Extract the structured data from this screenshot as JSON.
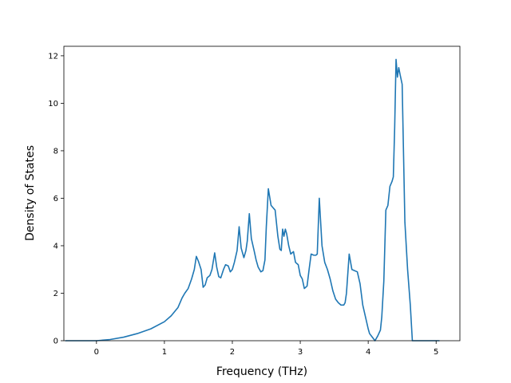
{
  "chart_data": {
    "type": "line",
    "title": "",
    "xlabel": "Frequency (THz)",
    "ylabel": "Density of States",
    "xlim": [
      -0.48,
      5.35
    ],
    "ylim": [
      0,
      12.4
    ],
    "x_ticks": [
      0,
      1,
      2,
      3,
      4,
      5
    ],
    "y_ticks": [
      0,
      2,
      4,
      6,
      8,
      10,
      12
    ],
    "grid": false,
    "legend": "none",
    "line_color": "#1f77b4",
    "series": [
      {
        "x": [
          -0.46,
          -0.2,
          0.0,
          0.2,
          0.4,
          0.6,
          0.8,
          1.0,
          1.1,
          1.2,
          1.26,
          1.3,
          1.35,
          1.4,
          1.44,
          1.47,
          1.5,
          1.54,
          1.57,
          1.6,
          1.63,
          1.67,
          1.7,
          1.74,
          1.77,
          1.8,
          1.83,
          1.87,
          1.9,
          1.94,
          1.97,
          2.0,
          2.03,
          2.07,
          2.1,
          2.13,
          2.17,
          2.2,
          2.22,
          2.25,
          2.28,
          2.32,
          2.35,
          2.38,
          2.42,
          2.45,
          2.48,
          2.5,
          2.53,
          2.57,
          2.6,
          2.63,
          2.67,
          2.7,
          2.72,
          2.74,
          2.76,
          2.78,
          2.8,
          2.83,
          2.86,
          2.9,
          2.93,
          2.97,
          3.0,
          3.03,
          3.06,
          3.1,
          3.13,
          3.16,
          3.2,
          3.23,
          3.25,
          3.28,
          3.32,
          3.36,
          3.4,
          3.44,
          3.48,
          3.52,
          3.56,
          3.6,
          3.64,
          3.66,
          3.68,
          3.72,
          3.76,
          3.8,
          3.84,
          3.88,
          3.92,
          3.96,
          4.0,
          4.02,
          4.06,
          4.1,
          4.14,
          4.18,
          4.2,
          4.23,
          4.26,
          4.29,
          4.32,
          4.35,
          4.37,
          4.39,
          4.41,
          4.43,
          4.45,
          4.47,
          4.5,
          4.54,
          4.58,
          4.62,
          4.65,
          4.8,
          5.05
        ],
        "y": [
          0.0,
          0.0,
          0.0,
          0.05,
          0.15,
          0.3,
          0.5,
          0.8,
          1.05,
          1.4,
          1.8,
          2.0,
          2.2,
          2.6,
          3.0,
          3.55,
          3.35,
          3.0,
          2.25,
          2.35,
          2.65,
          2.75,
          3.0,
          3.7,
          3.1,
          2.7,
          2.65,
          3.0,
          3.2,
          3.15,
          2.9,
          3.0,
          3.3,
          3.8,
          4.8,
          3.9,
          3.5,
          3.8,
          4.2,
          5.35,
          4.3,
          3.8,
          3.4,
          3.1,
          2.9,
          2.95,
          3.4,
          4.8,
          6.4,
          5.7,
          5.6,
          5.5,
          4.4,
          3.85,
          3.8,
          4.7,
          4.4,
          4.7,
          4.5,
          4.0,
          3.65,
          3.75,
          3.3,
          3.2,
          2.75,
          2.6,
          2.2,
          2.3,
          3.0,
          3.65,
          3.6,
          3.6,
          3.65,
          6.0,
          4.0,
          3.3,
          3.0,
          2.6,
          2.1,
          1.75,
          1.6,
          1.5,
          1.5,
          1.6,
          2.0,
          3.65,
          3.0,
          2.95,
          2.9,
          2.4,
          1.5,
          1.0,
          0.5,
          0.3,
          0.15,
          0.0,
          0.2,
          0.45,
          1.0,
          2.5,
          5.5,
          5.7,
          6.5,
          6.7,
          6.9,
          9.0,
          11.85,
          11.1,
          11.5,
          11.2,
          10.8,
          5.0,
          3.0,
          1.5,
          0.0,
          0.0,
          0.0
        ]
      }
    ]
  }
}
